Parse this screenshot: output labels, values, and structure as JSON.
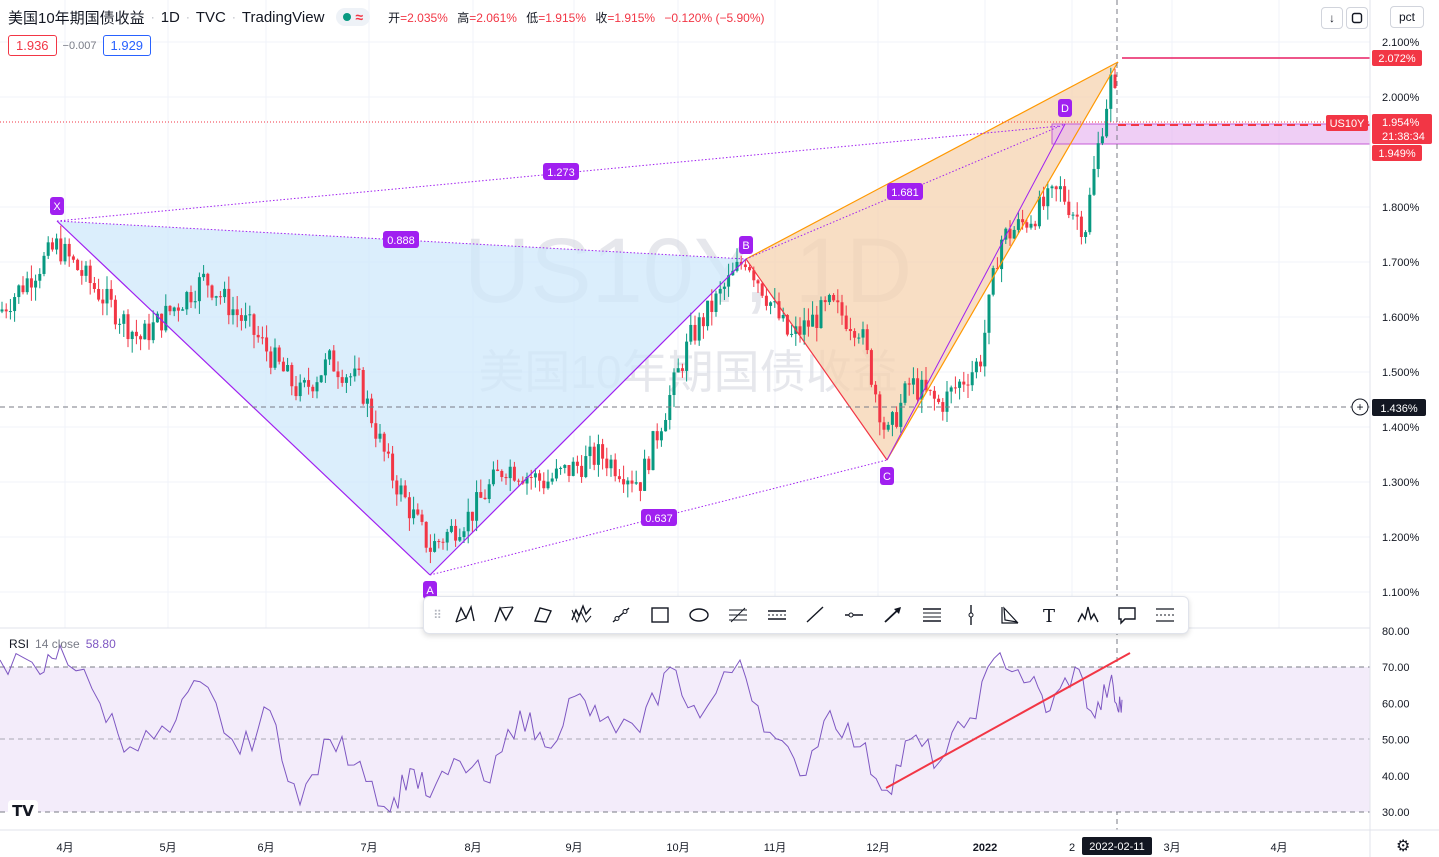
{
  "header": {
    "symbol_name": "美国10年期国债收益",
    "interval": "1D",
    "exchange": "TVC",
    "brand": "TradingView",
    "open_label": "开",
    "open": "=2.035%",
    "high_label": "高",
    "high": "=2.061%",
    "low_label": "低",
    "low": "=1.915%",
    "close_label": "收",
    "close": "=1.915%",
    "change": "−0.120% (−5.90%)",
    "status_icon": "wave-icon"
  },
  "trade": {
    "sell": "1.936",
    "spread": "−0.007",
    "buy": "1.929"
  },
  "controls": {
    "scale_mode": "pct",
    "down_arrow": "↓",
    "expand": "⛶"
  },
  "watermark": {
    "ticker": "US10Y, 1D",
    "name": "美国10年期国债收益"
  },
  "price_axis": {
    "ticks": [
      "2.100%",
      "2.000%",
      "1.800%",
      "1.700%",
      "1.600%",
      "1.500%",
      "1.400%",
      "1.300%",
      "1.200%",
      "1.100%"
    ],
    "tick_values": [
      2.1,
      2.0,
      1.8,
      1.7,
      1.6,
      1.5,
      1.4,
      1.3,
      1.2,
      1.1
    ],
    "labels": {
      "target": "2.072%",
      "symbol": "US10Y",
      "last": "1.954%",
      "countdown": "21:38:34",
      "zone_low": "1.949%",
      "crosshair": "1.436%"
    }
  },
  "time_axis": {
    "labels": [
      "4月",
      "5月",
      "6月",
      "7月",
      "8月",
      "9月",
      "10月",
      "11月",
      "12月",
      "2022",
      "2",
      "3月",
      "4月"
    ],
    "crosshair_date": "2022-02-11"
  },
  "pattern": {
    "points": [
      "X",
      "A",
      "B",
      "C",
      "D"
    ],
    "ratios": [
      "1.273",
      "0.888",
      "1.681",
      "0.637"
    ]
  },
  "rsi": {
    "name": "RSI",
    "params": "14 close",
    "value": "58.80",
    "ticks": [
      "80.00",
      "70.00",
      "60.00",
      "50.00",
      "40.00",
      "30.00"
    ],
    "tick_values": [
      80,
      70,
      60,
      50,
      40,
      30
    ]
  },
  "toolbar": {
    "grip": "⠿",
    "tools": [
      "xabcd-pattern-icon",
      "cypher-pattern-icon",
      "abcd-pattern-icon",
      "elliott-wave-icon",
      "trend-line-icon",
      "rectangle-icon",
      "ellipse-icon",
      "fib-retracement-icon",
      "parallel-channel-icon",
      "ray-icon",
      "horizontal-line-icon",
      "arrow-icon",
      "gann-box-icon",
      "vertical-line-icon",
      "triangle-pattern-icon",
      "text-icon",
      "head-shoulders-icon",
      "callout-icon",
      "pitchfork-icon"
    ]
  },
  "colors": {
    "up": "#089981",
    "down": "#f23645",
    "pattern_line": "#a020f0",
    "pattern_fill_xab": "#cfe8fb",
    "pattern_fill_bcd": "#f7d9b8",
    "orange": "#ff9800",
    "rsi_line": "#7e57c2",
    "rsi_band": "#f3ecfa",
    "red": "#f23645",
    "magenta": "#e91e63"
  }
}
